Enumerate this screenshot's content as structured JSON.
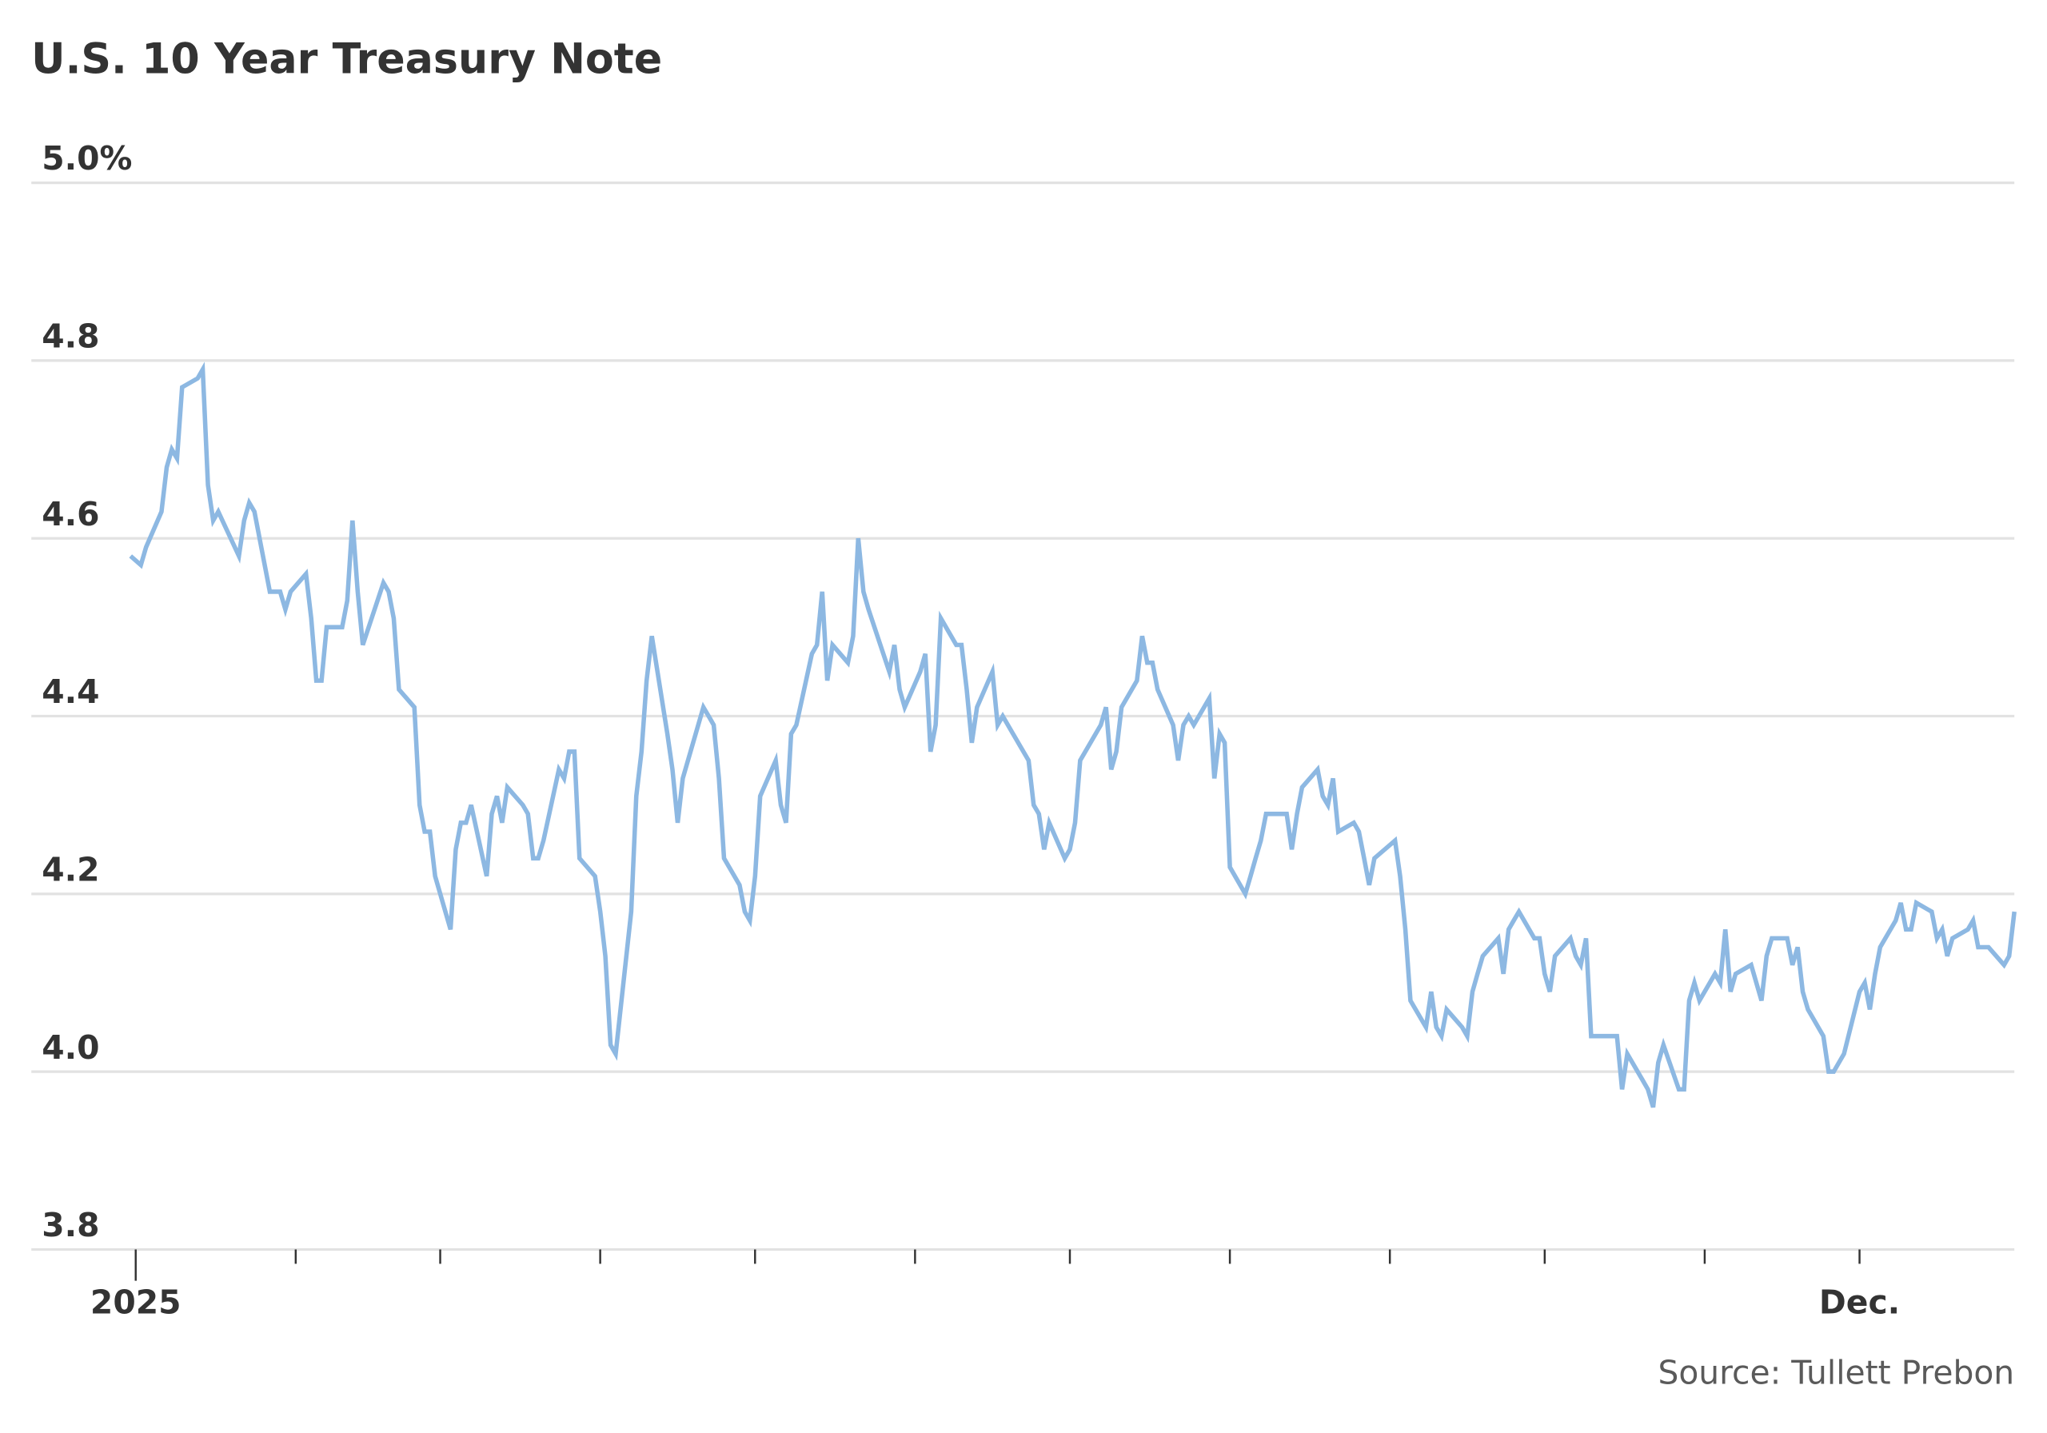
{
  "chart_data": {
    "type": "line",
    "title": "U.S. 10 Year Treasury Note",
    "source": "Source: Tullett Prebon",
    "xlabel": "",
    "ylabel": "",
    "ylim": [
      3.8,
      5.0
    ],
    "xlim": [
      "2024-12-31",
      "2025-12-31"
    ],
    "grid": true,
    "line_color": "#8db8e2",
    "y_ticks": [
      {
        "value": 5.0,
        "label": "5.0%"
      },
      {
        "value": 4.8,
        "label": "4.8"
      },
      {
        "value": 4.6,
        "label": "4.6"
      },
      {
        "value": 4.4,
        "label": "4.4"
      },
      {
        "value": 4.2,
        "label": "4.2"
      },
      {
        "value": 4.0,
        "label": "4.0"
      },
      {
        "value": 3.8,
        "label": "3.8"
      }
    ],
    "x_ticks": [
      {
        "date": "2025-01-01",
        "label": "2025"
      },
      {
        "date": "2025-02-01",
        "label": ""
      },
      {
        "date": "2025-03-01",
        "label": ""
      },
      {
        "date": "2025-04-01",
        "label": ""
      },
      {
        "date": "2025-05-01",
        "label": ""
      },
      {
        "date": "2025-06-01",
        "label": ""
      },
      {
        "date": "2025-07-01",
        "label": ""
      },
      {
        "date": "2025-08-01",
        "label": ""
      },
      {
        "date": "2025-09-01",
        "label": ""
      },
      {
        "date": "2025-10-01",
        "label": ""
      },
      {
        "date": "2025-11-01",
        "label": ""
      },
      {
        "date": "2025-12-01",
        "label": "Dec."
      }
    ],
    "x": [
      "2024-12-31",
      "2025-01-02",
      "2025-01-03",
      "2025-01-06",
      "2025-01-07",
      "2025-01-08",
      "2025-01-09",
      "2025-01-10",
      "2025-01-13",
      "2025-01-14",
      "2025-01-15",
      "2025-01-16",
      "2025-01-17",
      "2025-01-21",
      "2025-01-22",
      "2025-01-23",
      "2025-01-24",
      "2025-01-27",
      "2025-01-28",
      "2025-01-29",
      "2025-01-30",
      "2025-01-31",
      "2025-02-03",
      "2025-02-04",
      "2025-02-05",
      "2025-02-06",
      "2025-02-07",
      "2025-02-10",
      "2025-02-11",
      "2025-02-12",
      "2025-02-13",
      "2025-02-14",
      "2025-02-18",
      "2025-02-19",
      "2025-02-20",
      "2025-02-21",
      "2025-02-24",
      "2025-02-25",
      "2025-02-26",
      "2025-02-27",
      "2025-02-28",
      "2025-03-03",
      "2025-03-04",
      "2025-03-05",
      "2025-03-06",
      "2025-03-07",
      "2025-03-10",
      "2025-03-11",
      "2025-03-12",
      "2025-03-13",
      "2025-03-14",
      "2025-03-17",
      "2025-03-18",
      "2025-03-19",
      "2025-03-20",
      "2025-03-21",
      "2025-03-24",
      "2025-03-25",
      "2025-03-26",
      "2025-03-27",
      "2025-03-28",
      "2025-03-31",
      "2025-04-01",
      "2025-04-02",
      "2025-04-03",
      "2025-04-04",
      "2025-04-07",
      "2025-04-08",
      "2025-04-09",
      "2025-04-10",
      "2025-04-11",
      "2025-04-14",
      "2025-04-15",
      "2025-04-16",
      "2025-04-17",
      "2025-04-21",
      "2025-04-22",
      "2025-04-23",
      "2025-04-24",
      "2025-04-25",
      "2025-04-28",
      "2025-04-29",
      "2025-04-30",
      "2025-05-01",
      "2025-05-02",
      "2025-05-05",
      "2025-05-06",
      "2025-05-07",
      "2025-05-08",
      "2025-05-09",
      "2025-05-12",
      "2025-05-13",
      "2025-05-14",
      "2025-05-15",
      "2025-05-16",
      "2025-05-19",
      "2025-05-20",
      "2025-05-21",
      "2025-05-22",
      "2025-05-23",
      "2025-05-27",
      "2025-05-28",
      "2025-05-29",
      "2025-05-30",
      "2025-06-02",
      "2025-06-03",
      "2025-06-04",
      "2025-06-05",
      "2025-06-06",
      "2025-06-09",
      "2025-06-10",
      "2025-06-11",
      "2025-06-12",
      "2025-06-13",
      "2025-06-16",
      "2025-06-17",
      "2025-06-18",
      "2025-06-20",
      "2025-06-23",
      "2025-06-24",
      "2025-06-25",
      "2025-06-26",
      "2025-06-27",
      "2025-06-30",
      "2025-07-01",
      "2025-07-02",
      "2025-07-03",
      "2025-07-07",
      "2025-07-08",
      "2025-07-09",
      "2025-07-10",
      "2025-07-11",
      "2025-07-14",
      "2025-07-15",
      "2025-07-16",
      "2025-07-17",
      "2025-07-18",
      "2025-07-21",
      "2025-07-22",
      "2025-07-23",
      "2025-07-24",
      "2025-07-25",
      "2025-07-28",
      "2025-07-29",
      "2025-07-30",
      "2025-07-31",
      "2025-08-01",
      "2025-08-04",
      "2025-08-05",
      "2025-08-06",
      "2025-08-07",
      "2025-08-08",
      "2025-08-11",
      "2025-08-12",
      "2025-08-13",
      "2025-08-14",
      "2025-08-15",
      "2025-08-18",
      "2025-08-19",
      "2025-08-20",
      "2025-08-21",
      "2025-08-22",
      "2025-08-25",
      "2025-08-26",
      "2025-08-27",
      "2025-08-28",
      "2025-08-29",
      "2025-09-02",
      "2025-09-03",
      "2025-09-04",
      "2025-09-05",
      "2025-09-08",
      "2025-09-09",
      "2025-09-10",
      "2025-09-11",
      "2025-09-12",
      "2025-09-15",
      "2025-09-16",
      "2025-09-17",
      "2025-09-18",
      "2025-09-19",
      "2025-09-22",
      "2025-09-23",
      "2025-09-24",
      "2025-09-25",
      "2025-09-26",
      "2025-09-29",
      "2025-09-30",
      "2025-10-01",
      "2025-10-02",
      "2025-10-03",
      "2025-10-06",
      "2025-10-07",
      "2025-10-08",
      "2025-10-09",
      "2025-10-10",
      "2025-10-14",
      "2025-10-15",
      "2025-10-16",
      "2025-10-17",
      "2025-10-20",
      "2025-10-21",
      "2025-10-22",
      "2025-10-23",
      "2025-10-24",
      "2025-10-27",
      "2025-10-28",
      "2025-10-29",
      "2025-10-30",
      "2025-10-31",
      "2025-11-03",
      "2025-11-04",
      "2025-11-05",
      "2025-11-06",
      "2025-11-07",
      "2025-11-10",
      "2025-11-12",
      "2025-11-13",
      "2025-11-14",
      "2025-11-17",
      "2025-11-18",
      "2025-11-19",
      "2025-11-20",
      "2025-11-21",
      "2025-11-24",
      "2025-11-25",
      "2025-11-26",
      "2025-11-28",
      "2025-12-01",
      "2025-12-02",
      "2025-12-03",
      "2025-12-04",
      "2025-12-05",
      "2025-12-08",
      "2025-12-09",
      "2025-12-10",
      "2025-12-11",
      "2025-12-12",
      "2025-12-15",
      "2025-12-16",
      "2025-12-17",
      "2025-12-18",
      "2025-12-19",
      "2025-12-22",
      "2025-12-23",
      "2025-12-24",
      "2025-12-26",
      "2025-12-29",
      "2025-12-30",
      "2025-12-31"
    ],
    "y": [
      4.58,
      4.57,
      4.59,
      4.63,
      4.68,
      4.7,
      4.69,
      4.77,
      4.78,
      4.79,
      4.66,
      4.62,
      4.63,
      4.58,
      4.62,
      4.64,
      4.63,
      4.54,
      4.54,
      4.54,
      4.52,
      4.54,
      4.56,
      4.51,
      4.44,
      4.44,
      4.5,
      4.5,
      4.53,
      4.62,
      4.54,
      4.48,
      4.55,
      4.54,
      4.51,
      4.43,
      4.41,
      4.3,
      4.27,
      4.27,
      4.22,
      4.16,
      4.25,
      4.28,
      4.28,
      4.3,
      4.22,
      4.29,
      4.31,
      4.28,
      4.32,
      4.3,
      4.29,
      4.24,
      4.24,
      4.26,
      4.34,
      4.33,
      4.36,
      4.36,
      4.24,
      4.22,
      4.18,
      4.13,
      4.03,
      4.02,
      4.18,
      4.31,
      4.36,
      4.44,
      4.49,
      4.38,
      4.34,
      4.28,
      4.33,
      4.41,
      4.4,
      4.39,
      4.33,
      4.24,
      4.21,
      4.18,
      4.17,
      4.22,
      4.31,
      4.35,
      4.3,
      4.28,
      4.38,
      4.39,
      4.47,
      4.48,
      4.54,
      4.44,
      4.48,
      4.46,
      4.49,
      4.6,
      4.54,
      4.52,
      4.45,
      4.48,
      4.43,
      4.41,
      4.45,
      4.47,
      4.36,
      4.39,
      4.51,
      4.48,
      4.48,
      4.43,
      4.37,
      4.41,
      4.45,
      4.39,
      4.4,
      4.38,
      4.35,
      4.3,
      4.29,
      4.25,
      4.28,
      4.24,
      4.25,
      4.28,
      4.35,
      4.39,
      4.41,
      4.34,
      4.36,
      4.41,
      4.44,
      4.49,
      4.46,
      4.46,
      4.43,
      4.39,
      4.35,
      4.39,
      4.4,
      4.39,
      4.42,
      4.33,
      4.38,
      4.37,
      4.23,
      4.2,
      4.22,
      4.24,
      4.26,
      4.29,
      4.29,
      4.29,
      4.25,
      4.29,
      4.32,
      4.34,
      4.31,
      4.3,
      4.33,
      4.27,
      4.28,
      4.27,
      4.24,
      4.21,
      4.24,
      4.26,
      4.22,
      4.16,
      4.08,
      4.05,
      4.09,
      4.05,
      4.04,
      4.07,
      4.05,
      4.04,
      4.09,
      4.11,
      4.13,
      4.15,
      4.11,
      4.16,
      4.17,
      4.18,
      4.15,
      4.15,
      4.11,
      4.09,
      4.13,
      4.15,
      4.13,
      4.12,
      4.15,
      4.04,
      4.04,
      4.04,
      3.98,
      4.02,
      3.99,
      3.98,
      3.96,
      4.01,
      4.03,
      3.98,
      3.98,
      4.08,
      4.1,
      4.08,
      4.11,
      4.1,
      4.16,
      4.09,
      4.11,
      4.12,
      4.08,
      4.13,
      4.15,
      4.15,
      4.12,
      4.14,
      4.09,
      4.07,
      4.04,
      4.0,
      4.0,
      4.02,
      4.09,
      4.1,
      4.07,
      4.11,
      4.14,
      4.17,
      4.19,
      4.16,
      4.16,
      4.19,
      4.18,
      4.15,
      4.16,
      4.13,
      4.15,
      4.16,
      4.17,
      4.14,
      4.14,
      4.12,
      4.13,
      4.18
    ]
  }
}
